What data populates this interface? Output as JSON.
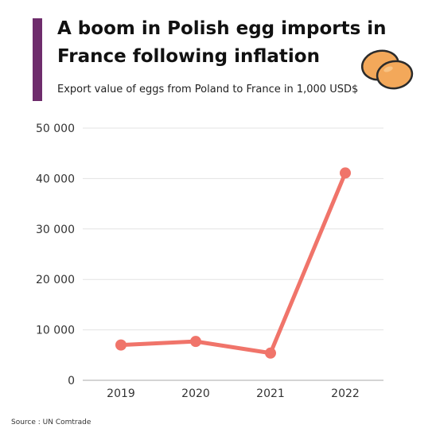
{
  "header": {
    "title": "A boom in Polish egg imports in France following inflation",
    "subtitle": "Export value of eggs from Poland to France in 1,000 USD$"
  },
  "source": "Source : UN Comtrade",
  "icons": {
    "eggs": "eggs-illustration"
  },
  "colors": {
    "accent": "#6e2c6c",
    "line": "#f0746a",
    "egg": "#f3a85a",
    "grid": "#e3e3e3"
  },
  "chart_data": {
    "type": "line",
    "title": "A boom in Polish egg imports in France following inflation",
    "subtitle": "Export value of eggs from Poland to France in 1,000 USD$",
    "xlabel": "",
    "ylabel": "",
    "categories": [
      "2019",
      "2020",
      "2021",
      "2022"
    ],
    "series": [
      {
        "values": [
          7000,
          7700,
          5400,
          41100
        ]
      }
    ],
    "ylim": [
      0,
      50000
    ],
    "yticks": [
      0,
      10000,
      20000,
      30000,
      40000,
      50000
    ],
    "ytick_labels": [
      "0",
      "10 000",
      "20 000",
      "30 000",
      "40 000",
      "50 000"
    ],
    "grid": true,
    "legend": "none"
  }
}
